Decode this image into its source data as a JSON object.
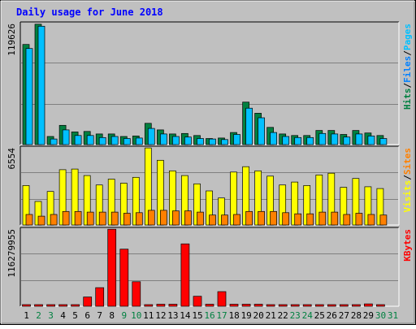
{
  "chart_data": {
    "type": "bar",
    "title": "Daily usage for June 2018",
    "categories": [
      "1",
      "2",
      "3",
      "4",
      "5",
      "6",
      "7",
      "8",
      "9",
      "10",
      "11",
      "12",
      "13",
      "14",
      "15",
      "16",
      "17",
      "18",
      "19",
      "20",
      "21",
      "22",
      "23",
      "24",
      "25",
      "26",
      "27",
      "28",
      "29",
      "30",
      "31"
    ],
    "weekend_days": [
      "2",
      "3",
      "9",
      "10",
      "16",
      "17",
      "23",
      "24",
      "30",
      "31"
    ],
    "colors": {
      "background": "#c0c0c0",
      "plot_bg": "#c0c0c0",
      "title": "#0000ff",
      "hits": "#008040",
      "files": "#00c0ff",
      "pages": "#00c0ff",
      "visits": "#ffff00",
      "sites": "#ff8000",
      "kbytes": "#ff0000",
      "weekday_label": "#000000",
      "weekend_label": "#008040"
    },
    "panels": [
      {
        "id": "hits",
        "max_label": "119626",
        "ylim": [
          0,
          119626
        ],
        "legend": [
          {
            "text": "Hits",
            "color": "#008040"
          },
          {
            "text": "/",
            "color": "#000000"
          },
          {
            "text": "Files",
            "color": "#0080ff"
          },
          {
            "text": "/",
            "color": "#000000"
          },
          {
            "text": "Pages",
            "color": "#00c0ff"
          }
        ],
        "series": [
          {
            "name": "Hits",
            "color": "#008040",
            "values": [
              99000,
              119000,
              8000,
              19000,
              12500,
              13000,
              10500,
              10500,
              8000,
              8500,
              21000,
              14500,
              10500,
              11000,
              9000,
              6000,
              6500,
              12000,
              42000,
              31000,
              17000,
              10500,
              9000,
              9000,
              14000,
              14000,
              10000,
              14000,
              11500,
              9000,
              0
            ]
          },
          {
            "name": "Files",
            "color": "#00c0ff",
            "values": [
              95000,
              117000,
              5500,
              14500,
              9000,
              9000,
              7000,
              8000,
              6000,
              6500,
              16000,
              10500,
              8000,
              7500,
              6000,
              5500,
              5000,
              10000,
              36000,
              26500,
              12000,
              8000,
              7000,
              7000,
              11000,
              10500,
              7500,
              10500,
              8500,
              6000,
              0
            ]
          }
        ]
      },
      {
        "id": "visits",
        "max_label": "6554",
        "ylim": [
          0,
          6554
        ],
        "legend": [
          {
            "text": "Visits",
            "color": "#ffff00"
          },
          {
            "text": "/",
            "color": "#000000"
          },
          {
            "text": "Sites",
            "color": "#ff8000"
          }
        ],
        "series": [
          {
            "name": "Visits",
            "color": "#ffff00",
            "values": [
              3350,
              2000,
              2850,
              4700,
              4750,
              4200,
              3400,
              3900,
              3550,
              4050,
              6550,
              5500,
              4600,
              4200,
              3500,
              2900,
              2300,
              4500,
              4950,
              4600,
              4150,
              3400,
              3650,
              3350,
              4250,
              4400,
              3200,
              3950,
              3250,
              3100,
              0
            ]
          },
          {
            "name": "Sites",
            "color": "#ff8000",
            "values": [
              900,
              750,
              900,
              1150,
              1150,
              1100,
              1100,
              1100,
              1000,
              1050,
              1250,
              1250,
              1200,
              1200,
              1100,
              850,
              850,
              900,
              1150,
              1150,
              1150,
              1050,
              950,
              950,
              1100,
              1100,
              900,
              1000,
              900,
              850,
              0
            ]
          }
        ]
      },
      {
        "id": "kbytes",
        "max_label": "116279955",
        "ylim": [
          0,
          116279955
        ],
        "legend": [
          {
            "text": "KBytes",
            "color": "#ff0000"
          }
        ],
        "series": [
          {
            "name": "KBytes",
            "color": "#ff0000",
            "values": [
              0,
              0,
              0,
              0,
              0,
              14000000,
              28000000,
              116000000,
              86000000,
              37000000,
              2500000,
              3000000,
              3000000,
              94000000,
              15000000,
              3000000,
              22000000,
              3000000,
              3000000,
              3000000,
              2500000,
              1500000,
              1500000,
              1500000,
              2000000,
              2000000,
              2000000,
              2000000,
              3500000,
              1500000,
              0
            ]
          }
        ]
      }
    ]
  }
}
